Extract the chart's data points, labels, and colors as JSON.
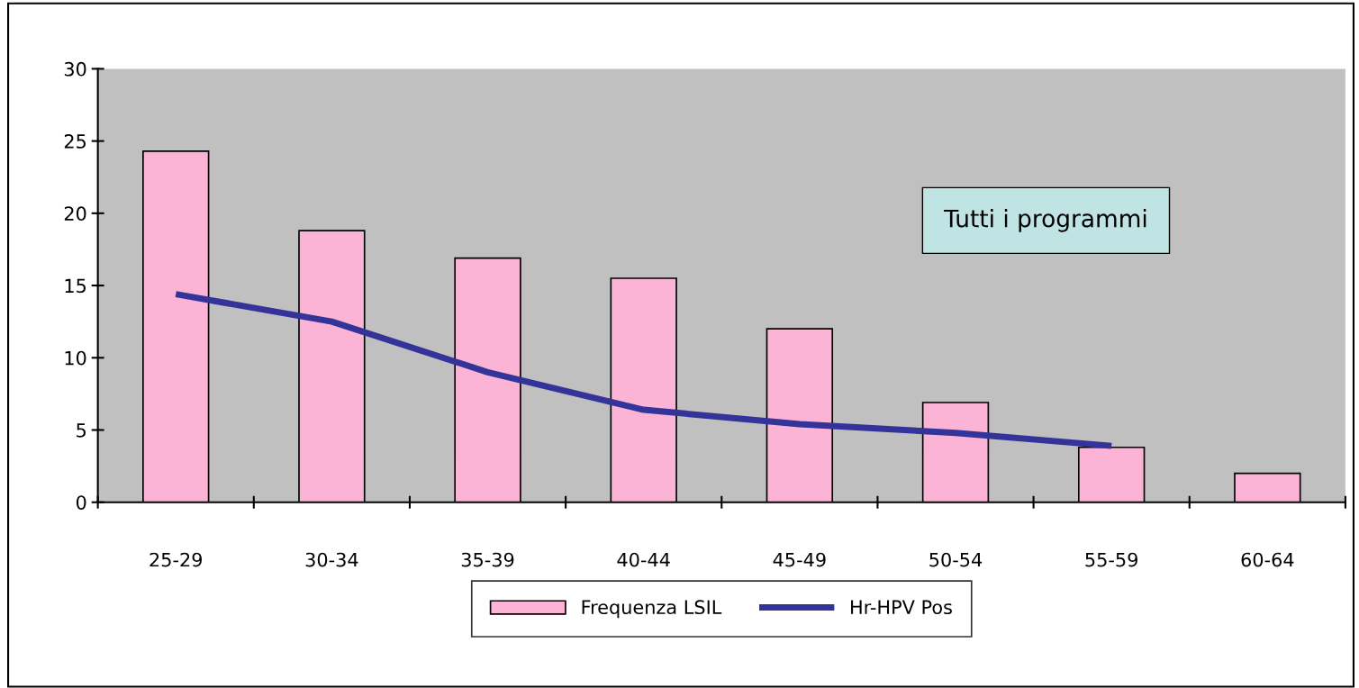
{
  "chart_data": {
    "type": "bar",
    "categories": [
      "25-29",
      "30-34",
      "35-39",
      "40-44",
      "45-49",
      "50-54",
      "55-59",
      "60-64"
    ],
    "series": [
      {
        "name": "Frequenza LSIL",
        "color": "#fbb4d6",
        "values": [
          24.3,
          18.8,
          16.9,
          15.5,
          12.0,
          6.9,
          3.8,
          2.0
        ]
      },
      {
        "name": "Hr-HPV Pos",
        "type": "line",
        "color": "#333399",
        "values": [
          14.4,
          12.5,
          9.0,
          6.4,
          5.4,
          4.8,
          3.9,
          null
        ]
      }
    ],
    "annotations": [
      "Tutti i programmi"
    ],
    "ylim": [
      0,
      30
    ],
    "yticks": [
      0,
      5,
      10,
      15,
      20,
      25,
      30
    ],
    "grid": false,
    "legend": "bottom",
    "marker": "none",
    "line_style": "solid"
  }
}
